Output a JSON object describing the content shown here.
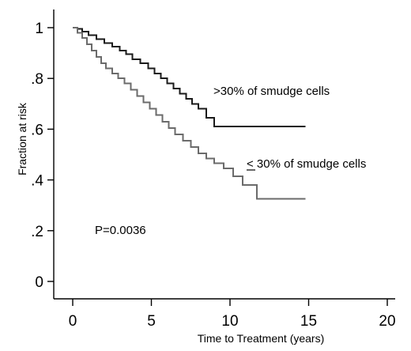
{
  "chart_data": {
    "type": "line",
    "title": "",
    "xlabel": "Time to Treatment (years)",
    "ylabel": "Fraction at risk",
    "xlim": [
      0,
      20
    ],
    "ylim": [
      0,
      1
    ],
    "xticks": [
      0,
      5,
      10,
      15,
      20
    ],
    "xtick_labels": [
      "0",
      "5",
      "10",
      "15",
      "20"
    ],
    "yticks": [
      0,
      0.2,
      0.4,
      0.6,
      0.8,
      1
    ],
    "ytick_labels": [
      "0",
      ".2",
      ".4",
      ".6",
      ".8",
      "1"
    ],
    "grid": false,
    "annotation": "P=0.0036",
    "series": [
      {
        "name": ">30% of smudge cells",
        "color": "#1a1a1a",
        "step": true,
        "x": [
          0,
          0.3,
          0.6,
          1.0,
          1.5,
          2.0,
          2.5,
          3.0,
          3.4,
          3.8,
          4.3,
          4.8,
          5.2,
          5.6,
          6.0,
          6.4,
          6.8,
          7.2,
          7.6,
          8.0,
          8.5,
          9.0,
          14.8
        ],
        "y": [
          1.0,
          0.995,
          0.985,
          0.97,
          0.955,
          0.94,
          0.925,
          0.91,
          0.895,
          0.875,
          0.86,
          0.84,
          0.82,
          0.8,
          0.78,
          0.76,
          0.74,
          0.72,
          0.7,
          0.68,
          0.645,
          0.61,
          0.61
        ],
        "label": ">30% of smudge cells"
      },
      {
        "name": "≤ 30% of smudge cells",
        "color": "#6b6b6b",
        "step": true,
        "x": [
          0,
          0.3,
          0.6,
          0.9,
          1.2,
          1.5,
          1.8,
          2.1,
          2.5,
          2.9,
          3.3,
          3.7,
          4.1,
          4.5,
          4.9,
          5.3,
          5.7,
          6.1,
          6.5,
          7.0,
          7.5,
          8.0,
          8.5,
          9.0,
          9.6,
          10.2,
          10.8,
          11.7,
          14.8
        ],
        "y": [
          1.0,
          0.98,
          0.96,
          0.935,
          0.91,
          0.885,
          0.86,
          0.84,
          0.82,
          0.8,
          0.78,
          0.755,
          0.73,
          0.705,
          0.68,
          0.655,
          0.63,
          0.605,
          0.58,
          0.555,
          0.53,
          0.505,
          0.485,
          0.465,
          0.445,
          0.415,
          0.38,
          0.325,
          0.325
        ],
        "label_prefix": "<",
        "label_text": " 30% of smudge cells"
      }
    ]
  }
}
